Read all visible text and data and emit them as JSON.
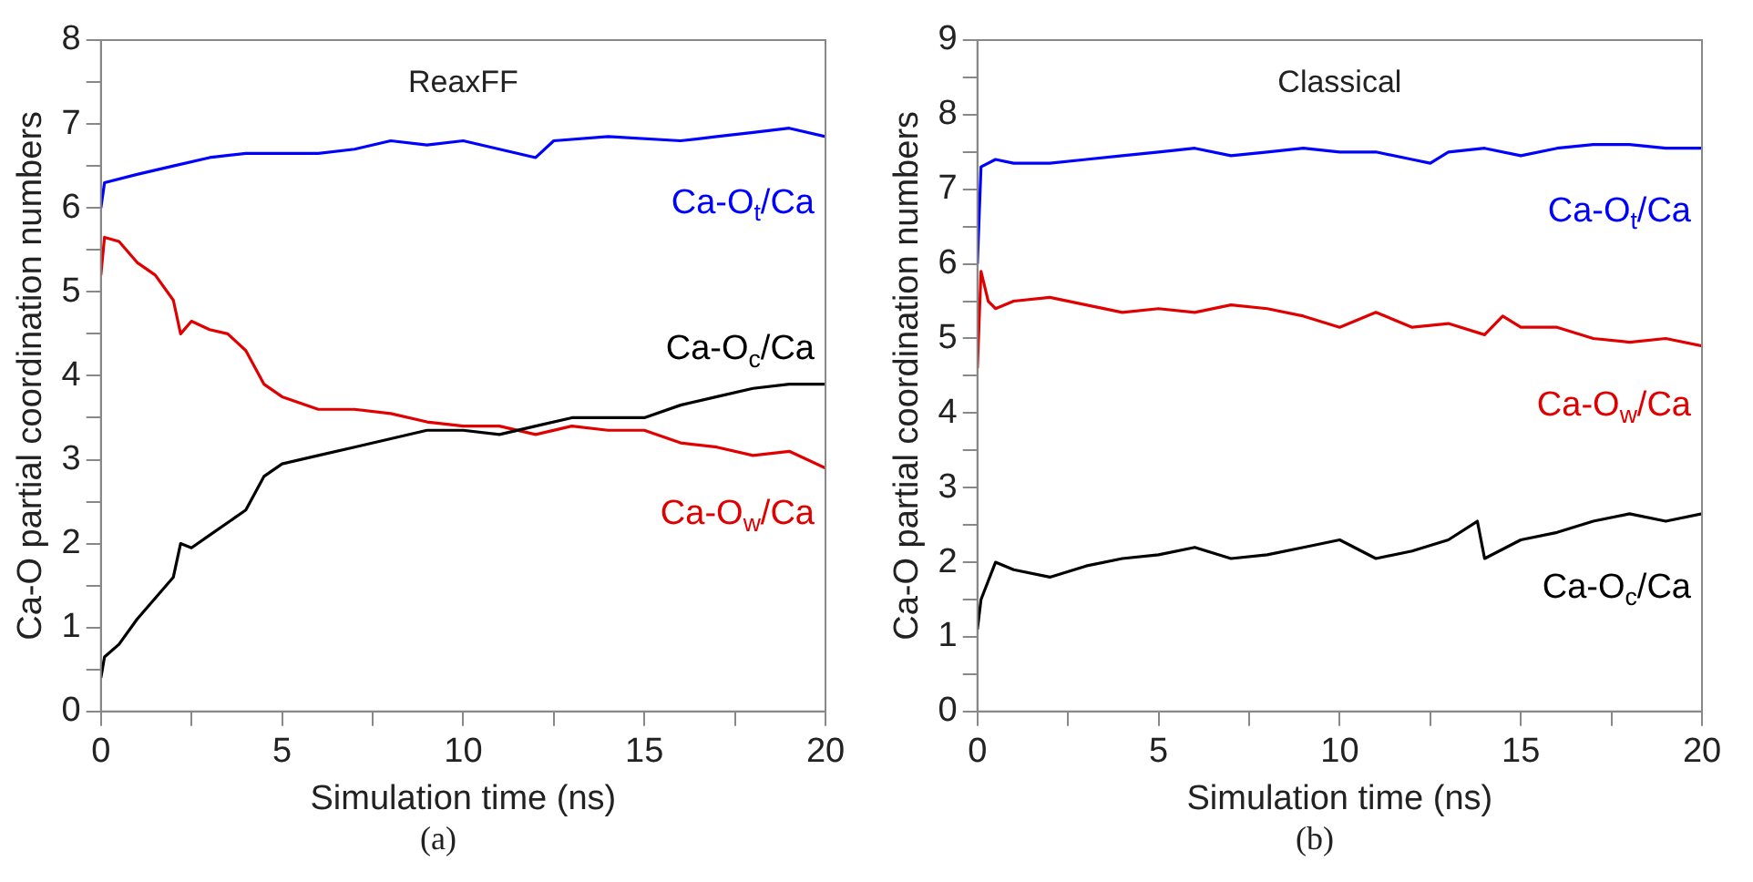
{
  "chart_data": [
    {
      "type": "line",
      "title": "ReaxFF",
      "xlabel": "Simulation time (ns)",
      "ylabel": "Ca-O partial coordination numbers",
      "annotations": [
        "(a)"
      ],
      "xlim": [
        0,
        20
      ],
      "ylim": [
        0,
        8
      ],
      "xticks": [
        0,
        {
          "value": 2.5,
          "label": null
        },
        5,
        {
          "value": 7.5,
          "label": null
        },
        10,
        {
          "value": 12.5,
          "label": null
        },
        15,
        {
          "value": 17.5,
          "label": null
        },
        20
      ],
      "yticks": [
        0,
        {
          "value": 0.5,
          "label": null
        },
        1,
        {
          "value": 1.5,
          "label": null
        },
        2,
        {
          "value": 2.5,
          "label": null
        },
        3,
        {
          "value": 3.5,
          "label": null
        },
        4,
        {
          "value": 4.5,
          "label": null
        },
        5,
        {
          "value": 5.5,
          "label": null
        },
        6,
        {
          "value": 6.5,
          "label": null
        },
        7,
        {
          "value": 7.5,
          "label": null
        },
        8
      ],
      "grid": false,
      "legend": false,
      "marker": "none",
      "line_style": "solid",
      "series": [
        {
          "name": "Ca-O$_{t}$/Ca",
          "color": "#0000ff",
          "x": [
            0,
            0.1,
            1,
            2,
            3,
            4,
            5,
            6,
            7,
            8,
            9,
            10,
            11,
            12,
            12.5,
            14,
            16,
            17,
            18,
            19,
            20
          ],
          "values": [
            6.0,
            6.3,
            6.4,
            6.5,
            6.6,
            6.65,
            6.65,
            6.65,
            6.7,
            6.8,
            6.75,
            6.8,
            6.7,
            6.6,
            6.8,
            6.85,
            6.8,
            6.85,
            6.9,
            6.95,
            6.85
          ]
        },
        {
          "name": "Ca-O$_{c}$/Ca",
          "color": "#000000",
          "x": [
            0,
            0.1,
            0.5,
            1,
            2,
            2.2,
            2.5,
            3,
            4,
            4.5,
            5,
            6,
            7,
            8,
            9,
            10,
            11,
            12,
            13,
            14,
            15,
            16,
            17,
            18,
            19,
            20
          ],
          "values": [
            0.4,
            0.65,
            0.8,
            1.1,
            1.6,
            2.0,
            1.95,
            2.1,
            2.4,
            2.8,
            2.95,
            3.05,
            3.15,
            3.25,
            3.35,
            3.35,
            3.3,
            3.4,
            3.5,
            3.5,
            3.5,
            3.65,
            3.75,
            3.85,
            3.9,
            3.9
          ]
        },
        {
          "name": "Ca-O$_{w}$/Ca",
          "color": "#e00000",
          "x": [
            0,
            0.1,
            0.5,
            1,
            1.5,
            2,
            2.2,
            2.5,
            3,
            3.5,
            4,
            4.5,
            5,
            6,
            7,
            8,
            9,
            10,
            11,
            12,
            13,
            14,
            15,
            16,
            17,
            18,
            19,
            20
          ],
          "values": [
            5.2,
            5.65,
            5.6,
            5.35,
            5.2,
            4.9,
            4.5,
            4.65,
            4.55,
            4.5,
            4.3,
            3.9,
            3.75,
            3.6,
            3.6,
            3.55,
            3.45,
            3.4,
            3.4,
            3.3,
            3.4,
            3.35,
            3.35,
            3.2,
            3.15,
            3.05,
            3.1,
            2.9
          ]
        }
      ]
    },
    {
      "type": "line",
      "title": "Classical",
      "xlabel": "Simulation time (ns)",
      "ylabel": "Ca-O partial coordination numbers",
      "annotations": [
        "(b)"
      ],
      "xlim": [
        0,
        20
      ],
      "ylim": [
        0,
        9
      ],
      "xticks": [
        0,
        {
          "value": 2.5,
          "label": null
        },
        5,
        {
          "value": 7.5,
          "label": null
        },
        10,
        {
          "value": 12.5,
          "label": null
        },
        15,
        {
          "value": 17.5,
          "label": null
        },
        20
      ],
      "yticks": [
        0,
        {
          "value": 0.5,
          "label": null
        },
        1,
        {
          "value": 1.5,
          "label": null
        },
        2,
        {
          "value": 2.5,
          "label": null
        },
        3,
        {
          "value": 3.5,
          "label": null
        },
        4,
        {
          "value": 4.5,
          "label": null
        },
        5,
        {
          "value": 5.5,
          "label": null
        },
        6,
        {
          "value": 6.5,
          "label": null
        },
        7,
        {
          "value": 7.5,
          "label": null
        },
        8,
        {
          "value": 8.5,
          "label": null
        },
        9
      ],
      "grid": false,
      "legend": false,
      "marker": "none",
      "line_style": "solid",
      "series": [
        {
          "name": "Ca-O$_{t}$/Ca",
          "color": "#0000ff",
          "x": [
            0,
            0.1,
            0.5,
            1,
            2,
            3,
            4,
            5,
            6,
            7,
            8,
            9,
            10,
            11,
            12,
            12.5,
            13,
            14,
            15,
            16,
            17,
            18,
            19,
            20
          ],
          "values": [
            6.0,
            7.3,
            7.4,
            7.35,
            7.35,
            7.4,
            7.45,
            7.5,
            7.55,
            7.45,
            7.5,
            7.55,
            7.5,
            7.5,
            7.4,
            7.35,
            7.5,
            7.55,
            7.45,
            7.55,
            7.6,
            7.6,
            7.55,
            7.55
          ]
        },
        {
          "name": "Ca-O$_{w}$/Ca",
          "color": "#e00000",
          "x": [
            0,
            0.1,
            0.3,
            0.5,
            1,
            2,
            3,
            4,
            5,
            6,
            7,
            8,
            9,
            10,
            11,
            12,
            13,
            14,
            14.5,
            15,
            16,
            17,
            18,
            19,
            20
          ],
          "values": [
            4.6,
            5.9,
            5.5,
            5.4,
            5.5,
            5.55,
            5.45,
            5.35,
            5.4,
            5.35,
            5.45,
            5.4,
            5.3,
            5.15,
            5.35,
            5.15,
            5.2,
            5.05,
            5.3,
            5.15,
            5.15,
            5.0,
            4.95,
            5.0,
            4.9
          ]
        },
        {
          "name": "Ca-O$_{c}$/Ca",
          "color": "#000000",
          "x": [
            0,
            0.1,
            0.5,
            1,
            2,
            3,
            4,
            5,
            6,
            7,
            8,
            9,
            10,
            11,
            12,
            13,
            13.8,
            14,
            15,
            16,
            17,
            18,
            19,
            20
          ],
          "values": [
            1.1,
            1.5,
            2.0,
            1.9,
            1.8,
            1.95,
            2.05,
            2.1,
            2.2,
            2.05,
            2.1,
            2.2,
            2.3,
            2.05,
            2.15,
            2.3,
            2.55,
            2.05,
            2.3,
            2.4,
            2.55,
            2.65,
            2.55,
            2.65
          ]
        }
      ]
    }
  ]
}
